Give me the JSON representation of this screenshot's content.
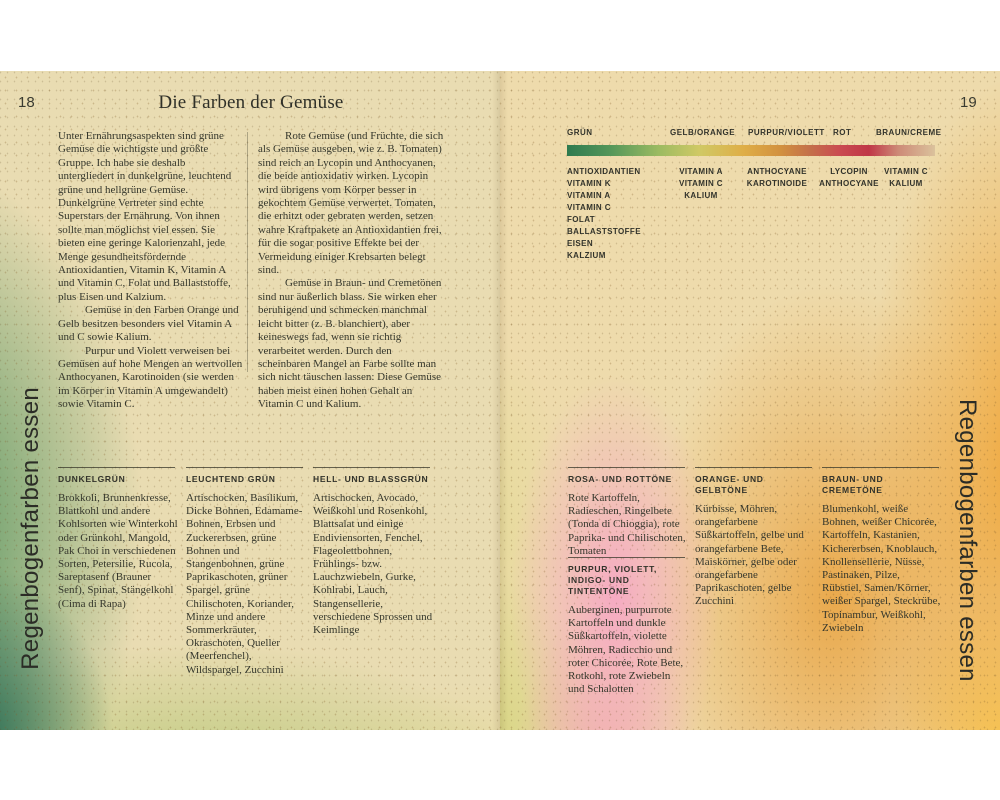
{
  "page_header": {
    "left_page_number": "18",
    "right_page_number": "19",
    "title": "Die Farben der Gemüse"
  },
  "vertical_banner": "Regenbogenfarben essen",
  "intro": {
    "column_1": {
      "paragraphs": [
        "Unter Ernährungsaspekten sind grüne Gemüse die wichtigste und größte Gruppe. Ich habe sie deshalb untergliedert in dunkelgrüne, leuchtend grüne und hellgrüne Gemüse. Dunkelgrüne Vertreter sind echte Superstars der Ernährung. Von ihnen sollte man möglichst viel essen. Sie bieten eine geringe Kalorienzahl, jede Menge gesundheitsfördernde Antioxidantien, Vitamin K, Vitamin A und Vitamin C, Folat und Ballaststoffe, plus Eisen und Kalzium.",
        "Gemüse in den Farben Orange und Gelb besitzen besonders viel Vitamin A und C sowie Kalium.",
        "Purpur und Violett verweisen bei Gemüsen auf hohe Mengen an wertvollen Anthocyanen, Karotinoiden (sie werden im Körper in Vitamin A umgewandelt) sowie Vitamin C."
      ]
    },
    "column_2": {
      "paragraphs": [
        "Rote Gemüse (und Früchte, die sich als Gemüse ausgeben, wie z. B. Tomaten) sind reich an Lycopin und Anthocyanen, die beide antioxidativ wirken. Lycopin wird übrigens vom Körper besser in gekochtem Gemüse verwertet. Tomaten, die erhitzt oder gebraten werden, setzen wahre Kraftpakete an Antioxidantien frei, für die sogar positive Effekte bei der Vermeidung einiger Krebsarten belegt sind.",
        "Gemüse in Braun- und Cremetönen sind nur äußerlich blass. Sie wirken eher beruhigend und schmecken manchmal leicht bitter (z. B. blanchiert), aber keineswegs fad, wenn sie richtig verarbeitet werden. Durch den scheinbaren Mangel an Farbe sollte man sich nicht täuschen lassen: Diese Gemüse haben meist einen hohen Gehalt an Vitamin C und Kalium."
      ]
    }
  },
  "legend": {
    "color_labels": [
      "GRÜN",
      "GELB/ORANGE",
      "PURPUR/VIOLETT",
      "ROT",
      "BRAUN/CREME"
    ],
    "gradient_stops": [
      "#2e7a4f 0%",
      "#55975a 12%",
      "#9cbb61 25%",
      "#d0c965 36%",
      "#dfae47 48%",
      "#d2913f 58%",
      "#c4704a 66%",
      "#ca4b51 74%",
      "#c03747 82%",
      "#cd8a77 90%",
      "#dbc29c 100%"
    ],
    "nutrient_columns": [
      [
        "ANTIOXIDANTIEN",
        "VITAMIN K",
        "VITAMIN A",
        "VITAMIN C",
        "FOLAT",
        "BALLASTSTOFFE",
        "EISEN",
        "KALZIUM"
      ],
      [
        "VITAMIN A",
        "VITAMIN C",
        "KALIUM"
      ],
      [
        "ANTHOCYANE",
        "KAROTINOIDE"
      ],
      [
        "LYCOPIN",
        "ANTHOCYANE"
      ],
      [
        "VITAMIN C",
        "KALIUM"
      ]
    ]
  },
  "categories": [
    {
      "heading": "DUNKELGRÜN",
      "body": "Brokkoli, Brunnenkresse, Blattkohl und andere Kohlsorten wie Winterkohl oder Grünkohl, Mangold, Pak Choi in verschiedenen Sorten, Petersilie, Rucola, Sareptasenf (Brauner Senf), Spinat, Stängelkohl (Cima di Rapa)"
    },
    {
      "heading": "LEUCHTEND GRÜN",
      "body": "Artischocken, Basilikum, Dicke Bohnen, Edamame-Bohnen, Erbsen und Zuckererbsen, grüne Bohnen und Stangenbohnen, grüne Paprikaschoten, grüner Spargel, grüne Chilischoten, Koriander, Minze und andere Sommerkräuter, Okraschoten, Queller (Meerfenchel), Wildspargel, Zucchini"
    },
    {
      "heading": "HELL- UND BLASSGRÜN",
      "body": "Artischocken, Avocado, Weißkohl und Rosenkohl, Blattsalat und einige Endiviensorten, Fenchel, Flageolettbohnen, Frühlings- bzw. Lauchzwiebeln, Gurke, Kohlrabi, Lauch, Stangensellerie, verschiedene Sprossen und Keimlinge"
    },
    {
      "heading": "ROSA- UND ROTTÖNE",
      "body": "Rote Kartoffeln, Radieschen, Ringelbete (Tonda di Chioggia), rote Paprika- und Chilischoten, Tomaten"
    },
    {
      "heading": "PURPUR, VIOLETT,\nINDIGO- UND TINTENTÖNE",
      "body": "Auberginen, purpurrote Kartoffeln und dunkle Süßkartoffeln, violette Möhren, Radicchio und roter Chicorée, Rote Bete, Rotkohl, rote Zwiebeln und Schalotten"
    },
    {
      "heading": "ORANGE- UND GELBTÖNE",
      "body": "Kürbisse, Möhren, orangefarbene Süßkartoffeln, gelbe und orangefarbene Bete, Maiskörner, gelbe oder orangefarbene Paprikaschoten, gelbe Zucchini"
    },
    {
      "heading": "BRAUN- UND CREMETÖNE",
      "body": "Blumenkohl, weiße Bohnen, weißer Chicorée, Kartoffeln, Kastanien, Kichererbsen, Knoblauch, Knollensellerie, Nüsse, Pastinaken, Pilze, Rübstiel, Samen/Körner, weißer Spargel, Steckrübe, Topinambur, Weißkohl, Zwiebeln"
    }
  ],
  "colors": {
    "paper_cream_left": "#e9dcb2",
    "paper_cream_right": "#eedbac",
    "leaf_green": "#4c8f59",
    "teal_green": "#1f6e50",
    "yellow_green": "#b9c76a",
    "rose_pink": "#f4a9c4",
    "orange": "#eca23c",
    "yellow": "#f5c454",
    "text_dark": "#35372c"
  }
}
